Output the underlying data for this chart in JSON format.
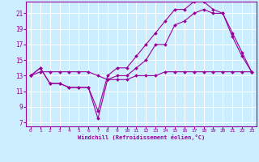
{
  "xlabel": "Windchill (Refroidissement éolien,°C)",
  "bg_color": "#cceeff",
  "grid_color": "#ffffff",
  "line_color": "#990099",
  "xlim": [
    -0.5,
    23.5
  ],
  "ylim": [
    6.5,
    22.5
  ],
  "xticks": [
    0,
    1,
    2,
    3,
    4,
    5,
    6,
    7,
    8,
    9,
    10,
    11,
    12,
    13,
    14,
    15,
    16,
    17,
    18,
    19,
    20,
    21,
    22,
    23
  ],
  "yticks": [
    7,
    9,
    11,
    13,
    15,
    17,
    19,
    21
  ],
  "series1_x": [
    0,
    1,
    2,
    3,
    4,
    5,
    6,
    7,
    8,
    9,
    10,
    11,
    12,
    13,
    14,
    15,
    16,
    17,
    18,
    19,
    20,
    21,
    22,
    23
  ],
  "series1_y": [
    13,
    14,
    12,
    12,
    11.5,
    11.5,
    11.5,
    7.5,
    12.5,
    13,
    13,
    14,
    15,
    17,
    17,
    19.5,
    20,
    21,
    21.5,
    21,
    21,
    18,
    15.5,
    13.5
  ],
  "series2_x": [
    0,
    1,
    2,
    3,
    4,
    5,
    6,
    7,
    8,
    9,
    10,
    11,
    12,
    13,
    14,
    15,
    16,
    17,
    18,
    19,
    20,
    21,
    22,
    23
  ],
  "series2_y": [
    13,
    14,
    12,
    12,
    11.5,
    11.5,
    11.5,
    8.5,
    13,
    14,
    14,
    15.5,
    17,
    18.5,
    20,
    21.5,
    21.5,
    22.5,
    22.5,
    21.5,
    21,
    18.5,
    16,
    13.5
  ],
  "series3_x": [
    0,
    1,
    2,
    3,
    4,
    5,
    6,
    7,
    8,
    9,
    10,
    11,
    12,
    13,
    14,
    15,
    16,
    17,
    18,
    19,
    20,
    21,
    22,
    23
  ],
  "series3_y": [
    13,
    13.5,
    13.5,
    13.5,
    13.5,
    13.5,
    13.5,
    13,
    12.5,
    12.5,
    12.5,
    13,
    13,
    13,
    13.5,
    13.5,
    13.5,
    13.5,
    13.5,
    13.5,
    13.5,
    13.5,
    13.5,
    13.5
  ]
}
